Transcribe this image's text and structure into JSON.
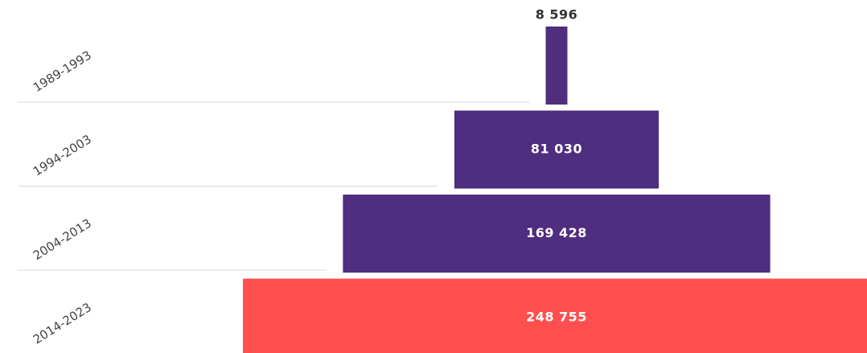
{
  "chart_data": {
    "type": "centered-bar",
    "categories": [
      "1989-1993",
      "1994-2003",
      "2004-2013",
      "2014-2023"
    ],
    "values": [
      8596,
      81030,
      169428,
      248755
    ],
    "value_labels": [
      "8 596",
      "81 030",
      "169 428",
      "248 755"
    ],
    "colors": [
      "#4f2d7f",
      "#4f2d7f",
      "#4f2d7f",
      "#ff4f4f"
    ]
  }
}
